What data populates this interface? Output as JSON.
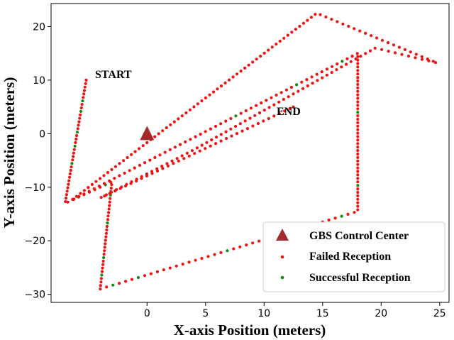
{
  "chart_data": {
    "type": "scatter",
    "xlabel": "X-axis Position (meters)",
    "ylabel": "Y-axis Position (meters)",
    "xlim": [
      -8.2,
      25.8
    ],
    "ylim": [
      -31.5,
      24.3
    ],
    "xticks": [
      0,
      5,
      10,
      15,
      20,
      25
    ],
    "yticks": [
      -30,
      -20,
      -10,
      0,
      10,
      20
    ],
    "grid": false,
    "legend_position": "lower-right",
    "annotations": [
      {
        "text": "START",
        "x": -4.9,
        "y": 10.4
      },
      {
        "text": "END",
        "x": 10.9,
        "y": 3.3
      }
    ],
    "colors": {
      "failed": "#ee1111",
      "success": "#118811",
      "gbs": "#a52a2a"
    },
    "gbs": {
      "name": "GBS Control Center",
      "x": 0,
      "y": 0
    },
    "path_vertices": [
      [
        -5.2,
        10
      ],
      [
        -7,
        -13
      ],
      [
        -3,
        -9
      ],
      [
        -4,
        -29
      ],
      [
        18,
        -14.5
      ],
      [
        18,
        15
      ],
      [
        -6.5,
        -12.5
      ],
      [
        14.5,
        22.5
      ],
      [
        24.8,
        13.2
      ],
      [
        19.5,
        16
      ],
      [
        4,
        -3
      ],
      [
        -4,
        -12
      ],
      [
        12.5,
        5
      ]
    ],
    "point_step": 0.65,
    "success_indices": [
      6,
      9,
      15,
      19,
      24,
      38,
      43,
      48,
      56,
      66,
      71,
      77,
      81,
      95,
      104,
      113,
      123,
      144,
      164,
      173,
      185
    ],
    "series": [
      {
        "name": "Failed Reception"
      },
      {
        "name": "Successful Reception"
      }
    ]
  }
}
